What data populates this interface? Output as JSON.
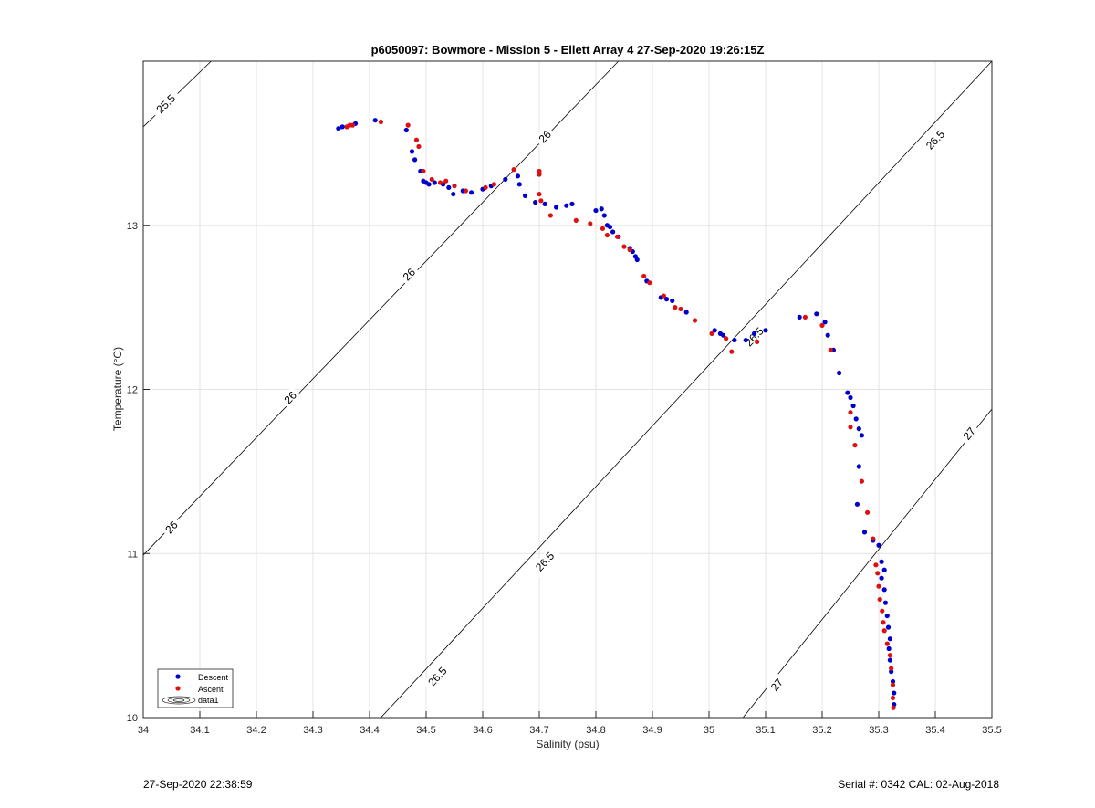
{
  "chart_data": {
    "type": "scatter",
    "title": "p6050097: Bowmore - Mission 5 - Ellett Array 4 27-Sep-2020 19:26:15Z",
    "xlabel": "Salinity (psu)",
    "ylabel": "Temperature (°C)",
    "xlim": [
      34,
      35.5
    ],
    "ylim": [
      10,
      14
    ],
    "x_ticks": [
      "34",
      "34.1",
      "34.2",
      "34.3",
      "34.4",
      "34.5",
      "34.6",
      "34.7",
      "34.8",
      "34.9",
      "35",
      "35.1",
      "35.2",
      "35.3",
      "35.4",
      "35.5"
    ],
    "y_ticks": [
      "10",
      "11",
      "12",
      "13"
    ],
    "grid": true,
    "legend_position": "bottom-left",
    "legend": [
      "Descent",
      "Ascent",
      "data1"
    ],
    "colors": {
      "descent": "#0000cc",
      "ascent": "#dd1111",
      "contour": "#000000",
      "grid": "#e3e3e3"
    },
    "series": [
      {
        "name": "Descent",
        "points": [
          [
            34.345,
            13.59
          ],
          [
            34.352,
            13.6
          ],
          [
            34.36,
            13.6
          ],
          [
            34.375,
            13.62
          ],
          [
            34.41,
            13.64
          ],
          [
            34.465,
            13.58
          ],
          [
            34.475,
            13.45
          ],
          [
            34.48,
            13.4
          ],
          [
            34.49,
            13.33
          ],
          [
            34.495,
            13.27
          ],
          [
            34.5,
            13.26
          ],
          [
            34.505,
            13.25
          ],
          [
            34.515,
            13.26
          ],
          [
            34.53,
            13.25
          ],
          [
            34.54,
            13.23
          ],
          [
            34.548,
            13.19
          ],
          [
            34.565,
            13.21
          ],
          [
            34.58,
            13.2
          ],
          [
            34.6,
            13.22
          ],
          [
            34.615,
            13.24
          ],
          [
            34.64,
            13.28
          ],
          [
            34.662,
            13.3
          ],
          [
            34.665,
            13.25
          ],
          [
            34.675,
            13.18
          ],
          [
            34.693,
            13.14
          ],
          [
            34.71,
            13.13
          ],
          [
            34.73,
            13.11
          ],
          [
            34.748,
            13.12
          ],
          [
            34.758,
            13.13
          ],
          [
            34.8,
            13.09
          ],
          [
            34.81,
            13.1
          ],
          [
            34.815,
            13.06
          ],
          [
            34.82,
            13.0
          ],
          [
            34.825,
            12.99
          ],
          [
            34.83,
            12.96
          ],
          [
            34.84,
            12.93
          ],
          [
            34.86,
            12.86
          ],
          [
            34.865,
            12.84
          ],
          [
            34.87,
            12.81
          ],
          [
            34.873,
            12.79
          ],
          [
            34.89,
            12.66
          ],
          [
            34.915,
            12.56
          ],
          [
            34.925,
            12.55
          ],
          [
            34.935,
            12.54
          ],
          [
            34.96,
            12.47
          ],
          [
            35.01,
            12.36
          ],
          [
            35.02,
            12.34
          ],
          [
            35.025,
            12.33
          ],
          [
            35.045,
            12.3
          ],
          [
            35.065,
            12.3
          ],
          [
            35.08,
            12.34
          ],
          [
            35.1,
            12.36
          ],
          [
            35.16,
            12.44
          ],
          [
            35.19,
            12.46
          ],
          [
            35.205,
            12.41
          ],
          [
            35.21,
            12.33
          ],
          [
            35.22,
            12.24
          ],
          [
            35.23,
            12.1
          ],
          [
            35.245,
            11.98
          ],
          [
            35.25,
            11.95
          ],
          [
            35.255,
            11.9
          ],
          [
            35.26,
            11.82
          ],
          [
            35.265,
            11.76
          ],
          [
            35.27,
            11.72
          ],
          [
            35.265,
            11.53
          ],
          [
            35.262,
            11.3
          ],
          [
            35.275,
            11.13
          ],
          [
            35.29,
            11.08
          ],
          [
            35.3,
            11.05
          ],
          [
            35.305,
            10.95
          ],
          [
            35.31,
            10.9
          ],
          [
            35.305,
            10.85
          ],
          [
            35.31,
            10.78
          ],
          [
            35.312,
            10.7
          ],
          [
            35.315,
            10.62
          ],
          [
            35.317,
            10.55
          ],
          [
            35.32,
            10.48
          ],
          [
            35.318,
            10.42
          ],
          [
            35.32,
            10.35
          ],
          [
            35.322,
            10.28
          ],
          [
            35.325,
            10.22
          ],
          [
            35.327,
            10.15
          ],
          [
            35.327,
            10.08
          ]
        ]
      },
      {
        "name": "Ascent",
        "points": [
          [
            34.36,
            13.6
          ],
          [
            34.365,
            13.61
          ],
          [
            34.37,
            13.61
          ],
          [
            34.42,
            13.63
          ],
          [
            34.468,
            13.61
          ],
          [
            34.483,
            13.52
          ],
          [
            34.487,
            13.48
          ],
          [
            34.495,
            13.33
          ],
          [
            34.51,
            13.28
          ],
          [
            34.525,
            13.26
          ],
          [
            34.535,
            13.27
          ],
          [
            34.55,
            13.24
          ],
          [
            34.57,
            13.21
          ],
          [
            34.605,
            13.23
          ],
          [
            34.62,
            13.25
          ],
          [
            34.655,
            13.34
          ],
          [
            34.7,
            13.33
          ],
          [
            34.7,
            13.31
          ],
          [
            34.7,
            13.19
          ],
          [
            34.703,
            13.15
          ],
          [
            34.72,
            13.06
          ],
          [
            34.765,
            13.03
          ],
          [
            34.79,
            13.01
          ],
          [
            34.812,
            12.98
          ],
          [
            34.82,
            12.94
          ],
          [
            34.838,
            12.93
          ],
          [
            34.85,
            12.87
          ],
          [
            34.86,
            12.85
          ],
          [
            34.885,
            12.69
          ],
          [
            34.895,
            12.65
          ],
          [
            34.92,
            12.57
          ],
          [
            34.94,
            12.5
          ],
          [
            34.95,
            12.49
          ],
          [
            34.975,
            12.42
          ],
          [
            35.005,
            12.34
          ],
          [
            35.03,
            12.31
          ],
          [
            35.04,
            12.23
          ],
          [
            35.085,
            12.29
          ],
          [
            35.17,
            12.44
          ],
          [
            35.2,
            12.39
          ],
          [
            35.215,
            12.24
          ],
          [
            35.25,
            11.86
          ],
          [
            35.25,
            11.77
          ],
          [
            35.258,
            11.66
          ],
          [
            35.27,
            11.44
          ],
          [
            35.28,
            11.25
          ],
          [
            35.29,
            11.09
          ],
          [
            35.295,
            10.93
          ],
          [
            35.298,
            10.88
          ],
          [
            35.3,
            10.8
          ],
          [
            35.302,
            10.72
          ],
          [
            35.306,
            10.65
          ],
          [
            35.308,
            10.58
          ],
          [
            35.31,
            10.53
          ],
          [
            35.315,
            10.45
          ],
          [
            35.32,
            10.38
          ],
          [
            35.322,
            10.3
          ],
          [
            35.325,
            10.2
          ],
          [
            35.325,
            10.12
          ],
          [
            35.326,
            10.06
          ]
        ]
      }
    ],
    "isopycnals": [
      {
        "value": "25.5",
        "segments": [
          [
            [
              34.0,
              13.6
            ],
            [
              34.12,
              14.0
            ]
          ]
        ],
        "labels": [
          [
            34.04,
            13.74
          ]
        ]
      },
      {
        "value": "26",
        "segments": [
          [
            [
              34.0,
              10.99
            ],
            [
              34.84,
              14.0
            ]
          ]
        ],
        "labels": [
          [
            34.05,
            11.16
          ],
          [
            34.26,
            11.95
          ],
          [
            34.47,
            12.7
          ],
          [
            34.71,
            13.54
          ]
        ]
      },
      {
        "value": "26.5",
        "segments": [
          [
            [
              34.42,
              10.0
            ],
            [
              35.5,
              14.0
            ]
          ]
        ],
        "labels": [
          [
            34.52,
            10.25
          ],
          [
            34.71,
            10.95
          ],
          [
            35.08,
            12.32
          ],
          [
            35.4,
            13.52
          ]
        ]
      },
      {
        "value": "27",
        "segments": [
          [
            [
              35.06,
              10.0
            ],
            [
              35.5,
              11.88
            ]
          ]
        ],
        "labels": [
          [
            35.12,
            10.2
          ],
          [
            35.46,
            11.73
          ]
        ]
      }
    ]
  },
  "footer": {
    "left": "27-Sep-2020 22:38:59",
    "right": "Serial #: 0342  CAL: 02-Aug-2018"
  }
}
